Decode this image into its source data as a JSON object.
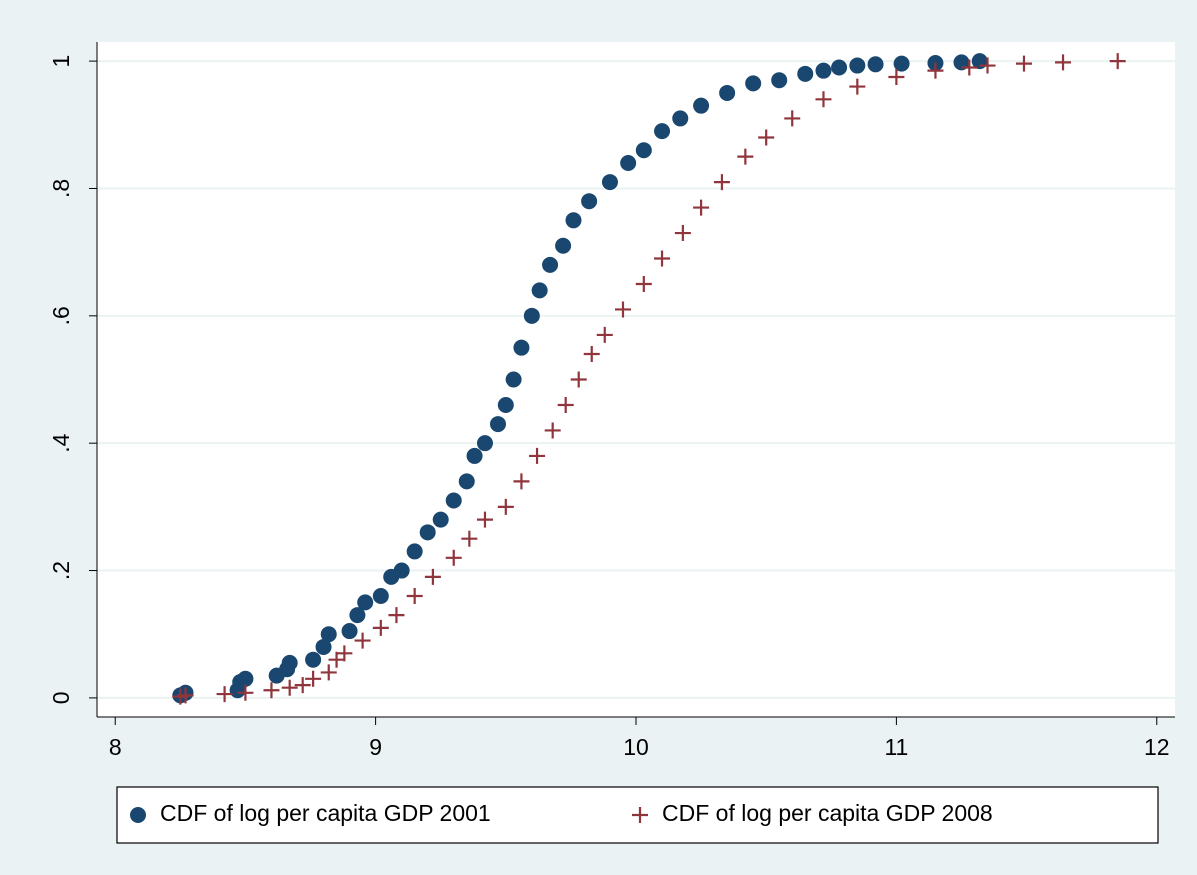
{
  "chart_data": {
    "type": "scatter",
    "xlim": [
      7.93,
      12.07
    ],
    "ylim": [
      -0.03,
      1.03
    ],
    "xticks": [
      8,
      9,
      10,
      11,
      12
    ],
    "yticks": [
      0,
      {
        "value": 0.2,
        "label": ".2"
      },
      {
        "value": 0.4,
        "label": ".4"
      },
      {
        "value": 0.6,
        "label": ".6"
      },
      {
        "value": 0.8,
        "label": ".8"
      },
      1
    ],
    "grid": true,
    "legend": "bottom",
    "series": [
      {
        "name": "CDF of log per capita GDP 2001",
        "color": "#1a476f",
        "marker": "circle",
        "x": [
          8.25,
          8.27,
          8.47,
          8.48,
          8.5,
          8.62,
          8.66,
          8.67,
          8.76,
          8.8,
          8.82,
          8.9,
          8.93,
          8.96,
          9.02,
          9.06,
          9.1,
          9.15,
          9.2,
          9.25,
          9.3,
          9.35,
          9.38,
          9.42,
          9.47,
          9.5,
          9.53,
          9.56,
          9.6,
          9.63,
          9.67,
          9.72,
          9.76,
          9.82,
          9.9,
          9.97,
          10.03,
          10.1,
          10.17,
          10.25,
          10.35,
          10.45,
          10.55,
          10.65,
          10.72,
          10.78,
          10.85,
          10.92,
          11.02,
          11.15,
          11.25,
          11.32
        ],
        "values": [
          0.004,
          0.008,
          0.012,
          0.025,
          0.03,
          0.035,
          0.045,
          0.055,
          0.06,
          0.08,
          0.1,
          0.105,
          0.13,
          0.15,
          0.16,
          0.19,
          0.2,
          0.23,
          0.26,
          0.28,
          0.31,
          0.34,
          0.38,
          0.4,
          0.43,
          0.46,
          0.5,
          0.55,
          0.6,
          0.64,
          0.68,
          0.71,
          0.75,
          0.78,
          0.81,
          0.84,
          0.86,
          0.89,
          0.91,
          0.93,
          0.95,
          0.965,
          0.97,
          0.98,
          0.985,
          0.99,
          0.993,
          0.995,
          0.996,
          0.997,
          0.998,
          1.0
        ]
      },
      {
        "name": "CDF of log per capita GDP 2008",
        "color": "#90353b",
        "marker": "plus",
        "x": [
          8.25,
          8.27,
          8.42,
          8.5,
          8.6,
          8.67,
          8.72,
          8.76,
          8.82,
          8.85,
          8.88,
          8.95,
          9.02,
          9.08,
          9.15,
          9.22,
          9.3,
          9.36,
          9.42,
          9.5,
          9.56,
          9.62,
          9.68,
          9.73,
          9.78,
          9.83,
          9.88,
          9.95,
          10.03,
          10.1,
          10.18,
          10.25,
          10.33,
          10.42,
          10.5,
          10.6,
          10.72,
          10.85,
          11.0,
          11.15,
          11.28,
          11.35,
          11.49,
          11.64,
          11.85
        ],
        "values": [
          0.002,
          0.004,
          0.006,
          0.008,
          0.012,
          0.016,
          0.02,
          0.03,
          0.04,
          0.06,
          0.07,
          0.09,
          0.11,
          0.13,
          0.16,
          0.19,
          0.22,
          0.25,
          0.28,
          0.3,
          0.34,
          0.38,
          0.42,
          0.46,
          0.5,
          0.54,
          0.57,
          0.61,
          0.65,
          0.69,
          0.73,
          0.77,
          0.81,
          0.85,
          0.88,
          0.91,
          0.94,
          0.96,
          0.975,
          0.985,
          0.99,
          0.993,
          0.996,
          0.998,
          1.0
        ]
      }
    ]
  }
}
